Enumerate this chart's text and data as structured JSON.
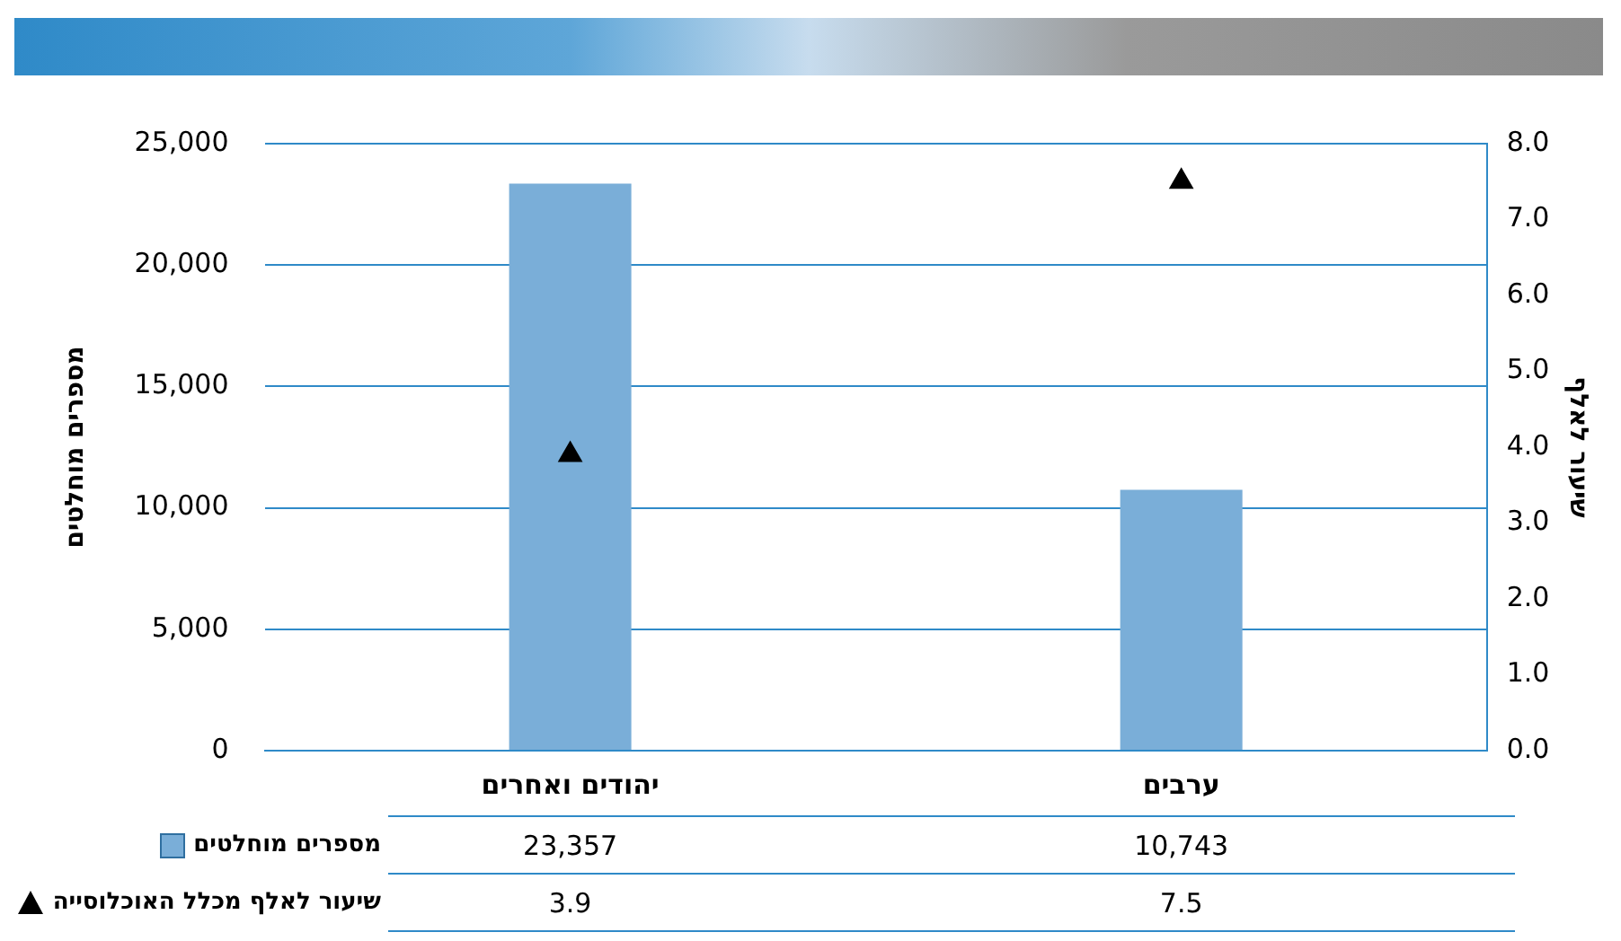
{
  "chart_data": {
    "type": "bar",
    "categories": [
      "יהודים ואחרים",
      "ערבים"
    ],
    "ylabel": "מספרים מוחלטים",
    "y2label": "שיעור לאלף",
    "ylim": [
      0,
      25000
    ],
    "yticks": [
      {
        "value": 0,
        "label": "0"
      },
      {
        "value": 5000,
        "label": "5,000"
      },
      {
        "value": 10000,
        "label": "10,000"
      },
      {
        "value": 15000,
        "label": "15,000"
      },
      {
        "value": 20000,
        "label": "20,000"
      },
      {
        "value": 25000,
        "label": "25,000"
      }
    ],
    "y2lim": [
      0,
      8
    ],
    "y2ticks": [
      {
        "value": 0,
        "label": "0.0"
      },
      {
        "value": 1,
        "label": "1.0"
      },
      {
        "value": 2,
        "label": "2.0"
      },
      {
        "value": 3,
        "label": "3.0"
      },
      {
        "value": 4,
        "label": "4.0"
      },
      {
        "value": 5,
        "label": "5.0"
      },
      {
        "value": 6,
        "label": "6.0"
      },
      {
        "value": 7,
        "label": "7.0"
      },
      {
        "value": 8,
        "label": "8.0"
      }
    ],
    "grid": "y",
    "legend": "bottom",
    "series": [
      {
        "name": "מספרים מוחלטים",
        "color": "#7aaed8",
        "values": [
          23357,
          10743
        ],
        "value_labels": [
          "23,357",
          "10,743"
        ]
      },
      {
        "name": "שיעור לאלף מכלל האוכלוסייה",
        "type": "scatter",
        "axis": "y2",
        "marker": "triangle",
        "color": "#000000",
        "values": [
          3.9,
          7.5
        ],
        "value_labels": [
          "3.9",
          "7.5"
        ]
      }
    ]
  }
}
